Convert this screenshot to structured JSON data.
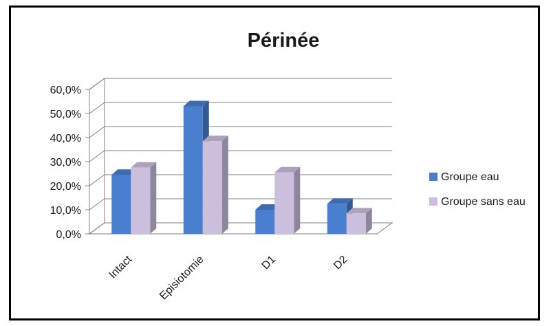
{
  "chart_data": {
    "type": "bar",
    "title": "Périnée",
    "categories": [
      "Intact",
      "Episiotomie",
      "D1",
      "D2"
    ],
    "series": [
      {
        "name": "Groupe eau",
        "values": [
          24.5,
          53.0,
          10.0,
          12.5
        ],
        "color": "#4a7fd0"
      },
      {
        "name": "Groupe sans eau",
        "values": [
          27.5,
          38.5,
          25.5,
          8.5
        ],
        "color": "#cbbfdd"
      }
    ],
    "y_tick_labels": [
      "0,0%",
      "10,0%",
      "20,0%",
      "30,0%",
      "40,0%",
      "50,0%",
      "60,0%"
    ],
    "ylim": [
      0,
      60
    ],
    "grid": true,
    "legend": "right",
    "three_d": true
  }
}
